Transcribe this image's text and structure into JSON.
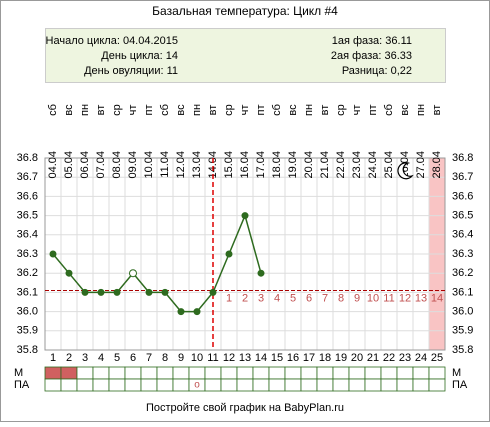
{
  "chart_data": {
    "type": "line",
    "title": "Базальная температура: Цикл #4",
    "info_left": [
      "Начало цикла: 04.04.2015",
      "День цикла: 14",
      "День овуляции: 11"
    ],
    "info_right": [
      "1ая фаза: 36.11",
      "2ая фаза: 36.33",
      "Разница: 0,22"
    ],
    "categories": [
      1,
      2,
      3,
      4,
      5,
      6,
      7,
      8,
      9,
      10,
      11,
      12,
      13,
      14,
      15,
      16,
      17,
      18,
      19,
      20,
      21,
      22,
      23,
      24,
      25
    ],
    "weekdays": [
      "сб",
      "вс",
      "пн",
      "вт",
      "ср",
      "чт",
      "пт",
      "сб",
      "вс",
      "пн",
      "вт",
      "ср",
      "чт",
      "пт",
      "сб",
      "вс",
      "пн",
      "вт",
      "ср",
      "чт",
      "пт",
      "сб",
      "вс",
      "пн",
      "вт"
    ],
    "dates": [
      "04.04",
      "05.04",
      "06.04",
      "07.04",
      "08.04",
      "09.04",
      "10.04",
      "11.04",
      "12.04",
      "13.04",
      "14.04",
      "15.04",
      "16.04",
      "17.04",
      "18.04",
      "19.04",
      "20.04",
      "21.04",
      "22.04",
      "23.04",
      "24.04",
      "25.04",
      "26.04",
      "27.04",
      "28.04"
    ],
    "series": [
      {
        "color": "#2e6b1f",
        "values": [
          36.3,
          36.2,
          36.1,
          36.1,
          36.1,
          36.2,
          36.1,
          36.1,
          36.0,
          36.0,
          36.1,
          36.3,
          36.5,
          36.2,
          null,
          null,
          null,
          null,
          null,
          null,
          null,
          null,
          null,
          null,
          null
        ]
      }
    ],
    "open_marker_days": [
      6
    ],
    "cover_line": 36.11,
    "ovulation_day": 11,
    "post_ovulation_days": [
      null,
      null,
      null,
      null,
      null,
      null,
      null,
      null,
      null,
      null,
      null,
      1,
      2,
      3,
      4,
      5,
      6,
      7,
      8,
      9,
      10,
      11,
      12,
      13,
      14
    ],
    "highlight_days": [
      25
    ],
    "ylim": [
      35.8,
      36.8
    ],
    "yticks": [
      35.8,
      35.9,
      {
        "value": 36.0,
        "label": "36.0"
      },
      36.1,
      36.2,
      36.3,
      36.4,
      36.5,
      36.6,
      36.7,
      36.8
    ],
    "grid": true,
    "row_labels": [
      "М",
      "ПА"
    ],
    "m_days": [
      1,
      2
    ],
    "pa_row": [
      null,
      null,
      null,
      null,
      null,
      null,
      null,
      null,
      null,
      "o",
      null,
      null,
      null,
      null,
      null,
      null,
      null,
      null,
      null,
      null,
      null,
      null,
      null,
      null,
      null
    ],
    "footer": "Постройте свой график на BabyPlan.ru"
  }
}
